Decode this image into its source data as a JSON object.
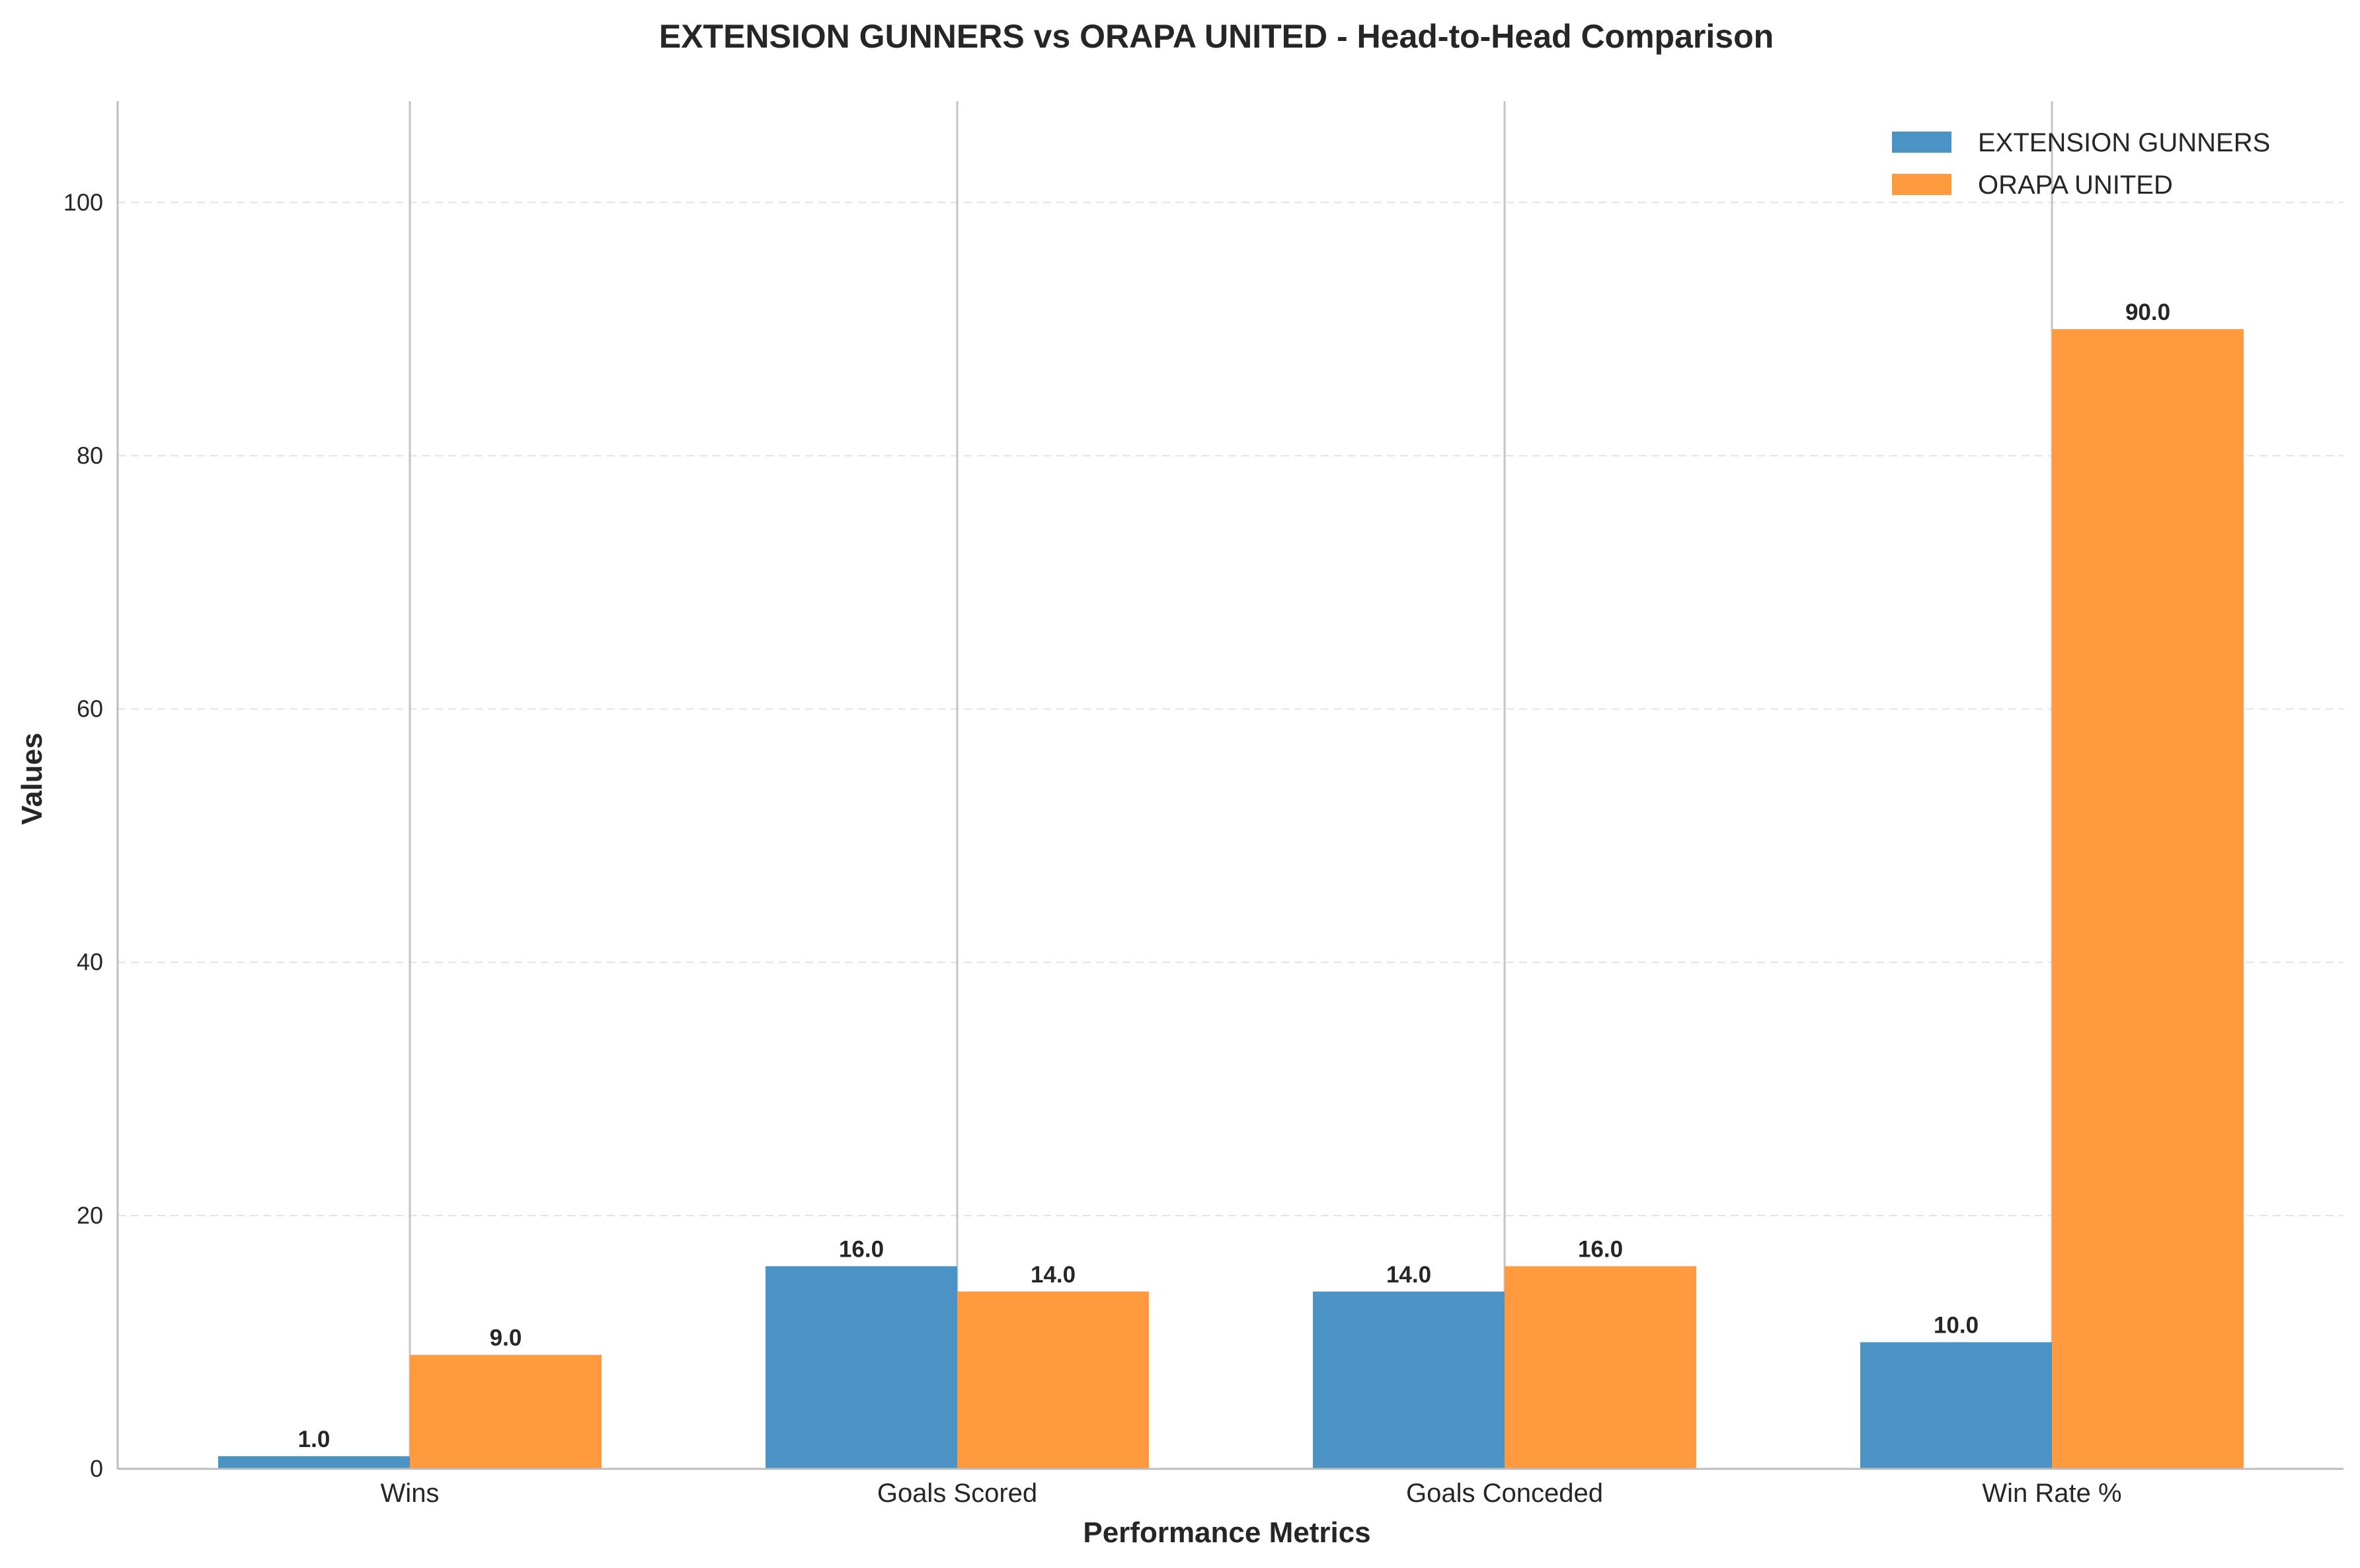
{
  "chart_data": {
    "type": "bar",
    "title": "EXTENSION GUNNERS vs ORAPA UNITED - Head-to-Head Comparison",
    "xlabel": "Performance Metrics",
    "ylabel": "Values",
    "categories": [
      "Wins",
      "Goals Scored",
      "Goals Conceded",
      "Win Rate %"
    ],
    "series": [
      {
        "name": "EXTENSION GUNNERS",
        "values": [
          1.0,
          16.0,
          14.0,
          10.0
        ],
        "color": "#4c93c5"
      },
      {
        "name": "ORAPA UNITED",
        "values": [
          9.0,
          14.0,
          16.0,
          90.0
        ],
        "color": "#ff9a3e"
      }
    ],
    "value_labels": [
      [
        "1.0",
        "16.0",
        "14.0",
        "10.0"
      ],
      [
        "9.0",
        "14.0",
        "16.0",
        "90.0"
      ]
    ],
    "ylim": [
      0,
      108
    ],
    "yticks": [
      0,
      20,
      40,
      60,
      80,
      100
    ],
    "grid": true,
    "legend_position": "top-right"
  }
}
